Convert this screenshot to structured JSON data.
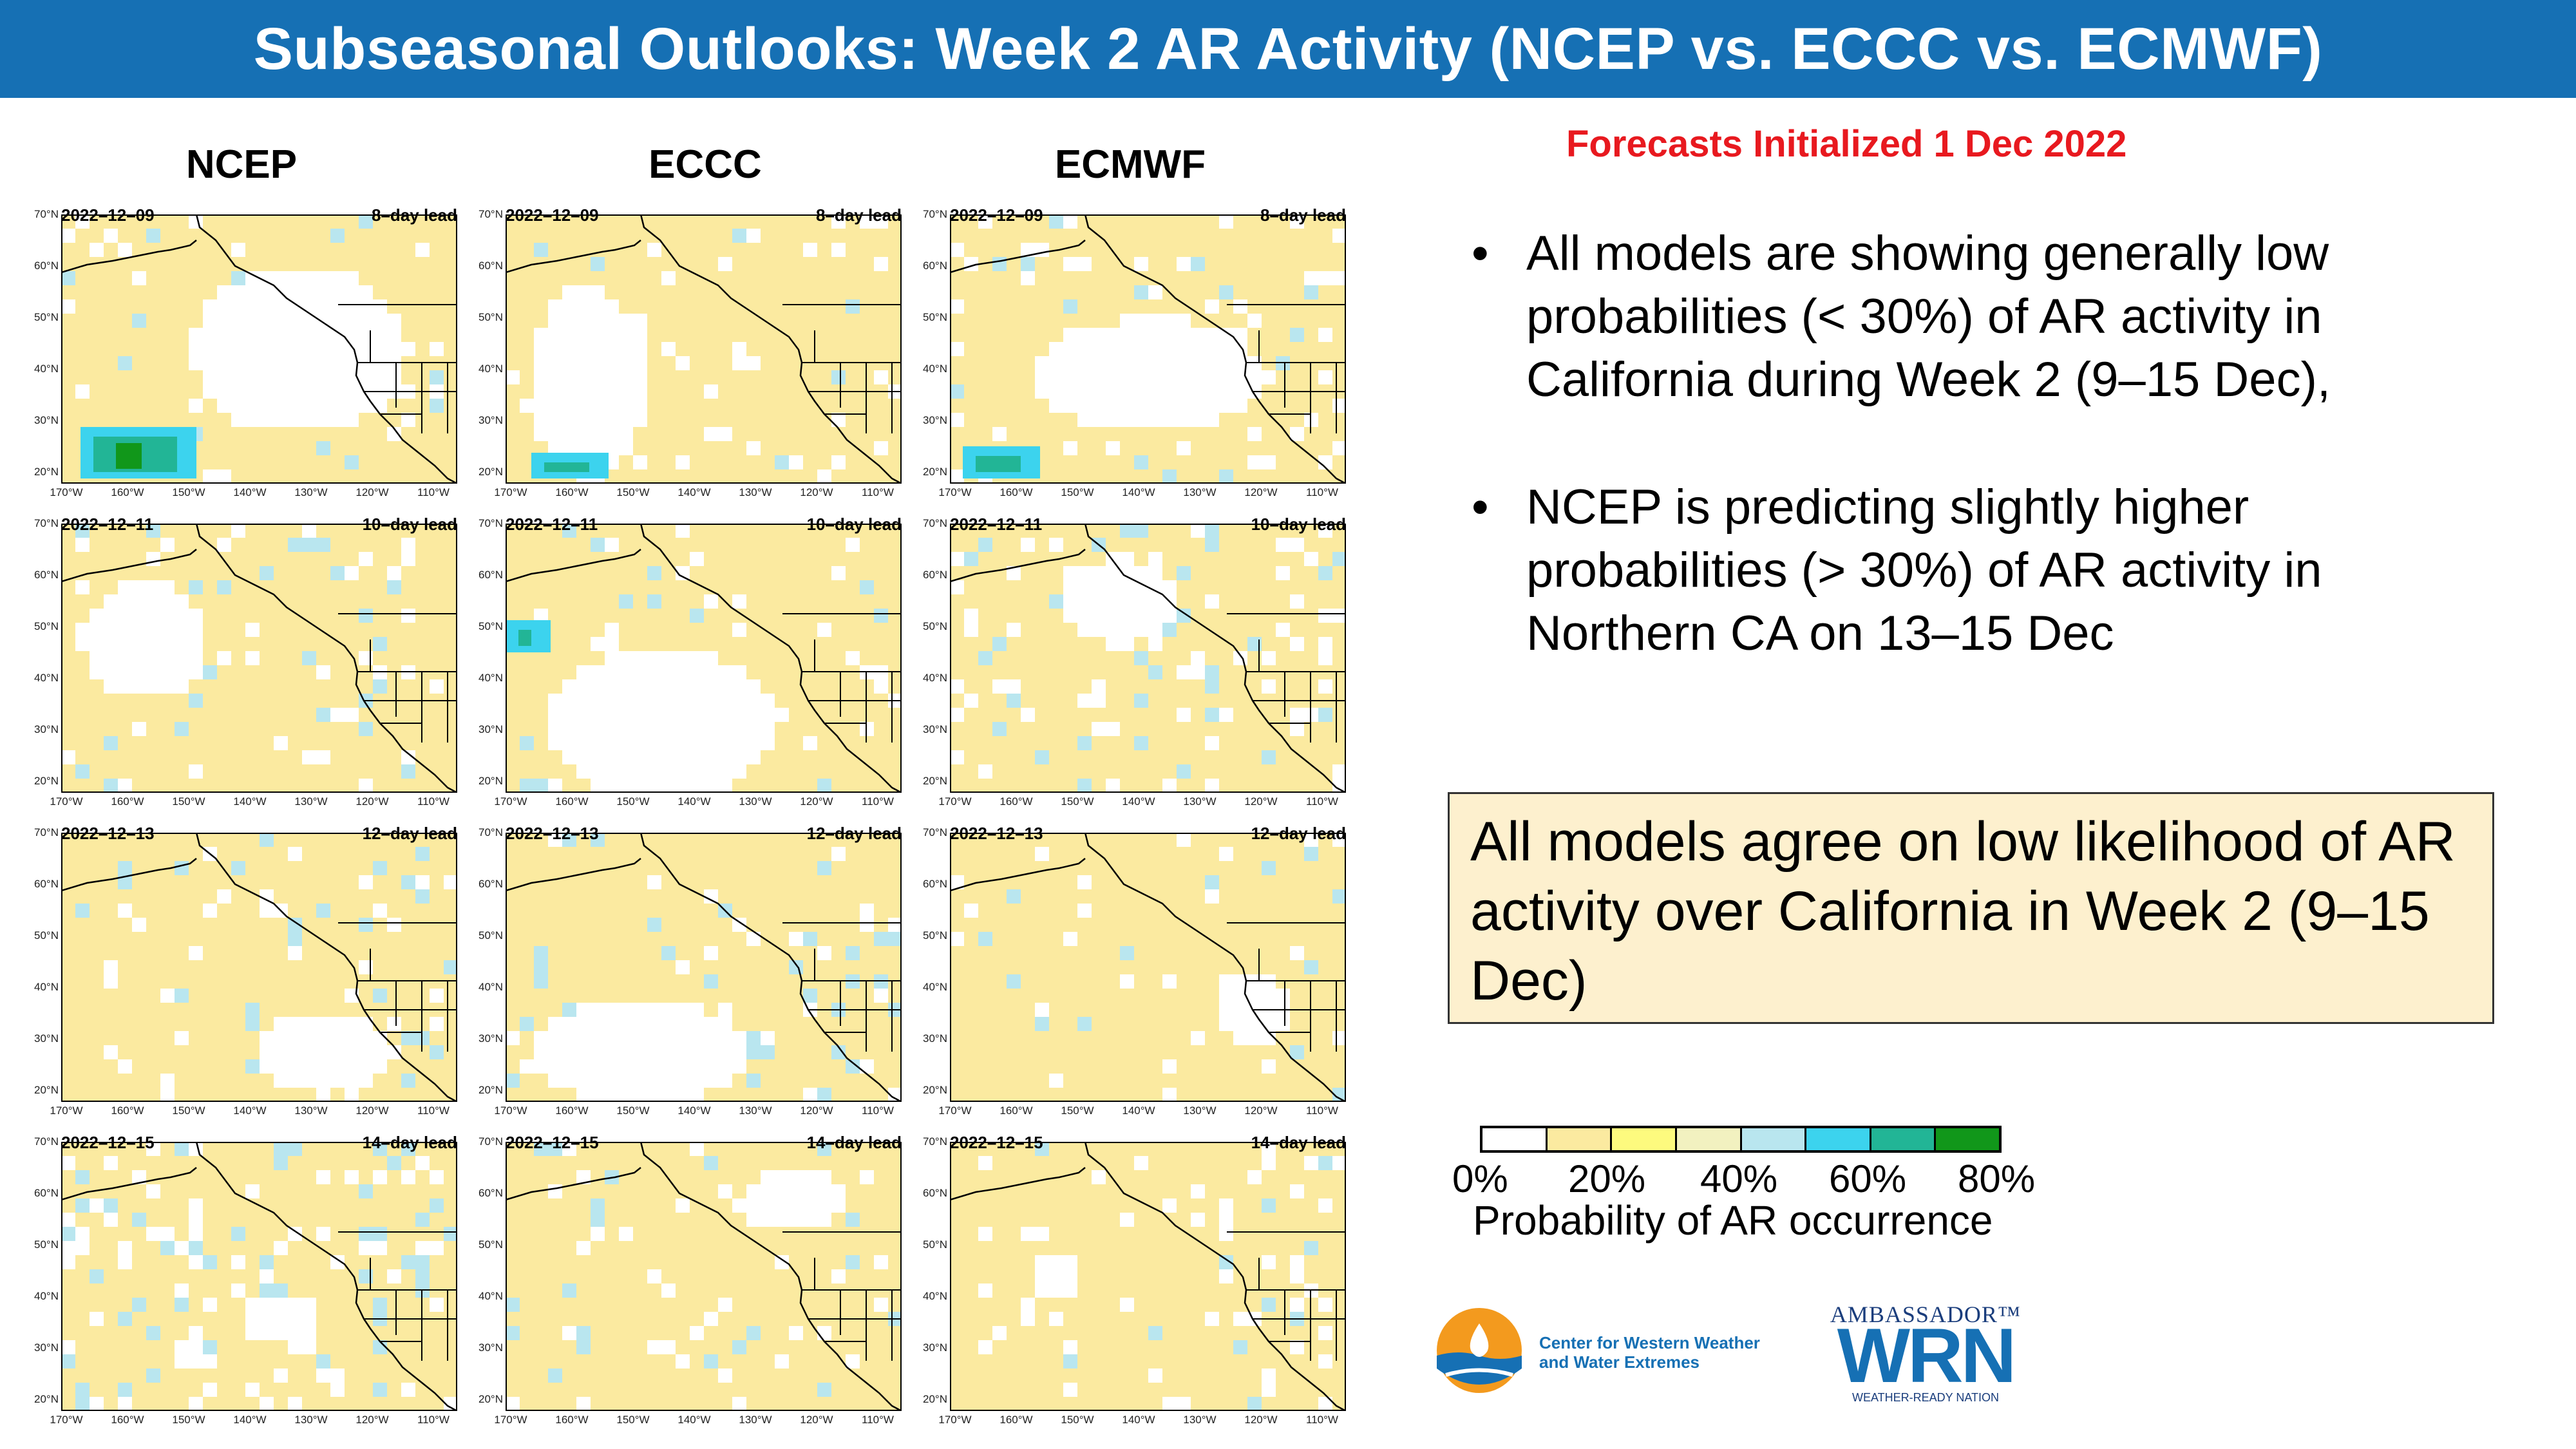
{
  "title": "Subseasonal Outlooks: Week 2 AR Activity (NCEP vs. ECCC vs. ECMWF)",
  "columns": [
    "NCEP",
    "ECCC",
    "ECMWF"
  ],
  "rows": [
    {
      "date": "2022–12–09",
      "lead": "8–day lead"
    },
    {
      "date": "2022–12–11",
      "lead": "10–day lead"
    },
    {
      "date": "2022–12–13",
      "lead": "12–day lead"
    },
    {
      "date": "2022–12–15",
      "lead": "14–day lead"
    }
  ],
  "lat_labels": [
    "70°N",
    "60°N",
    "50°N",
    "40°N",
    "30°N",
    "20°N"
  ],
  "lon_labels": [
    "170°W",
    "160°W",
    "150°W",
    "140°W",
    "130°W",
    "120°W",
    "110°W"
  ],
  "forecast_init": "Forecasts Initialized 1 Dec 2022",
  "bullets": [
    "All models are showing generally low probabilities (< 30%) of AR activity in California during Week 2 (9–15 Dec),",
    "NCEP is predicting slightly higher probabilities (> 30%) of AR activity in Northern CA on 13–15 Dec"
  ],
  "bullet_glyph": "•",
  "summary": "All models agree on low likelihood of AR activity over California in Week 2 (9–15 Dec)",
  "legend": {
    "colors": [
      "#ffffff",
      "#fbeaa0",
      "#fdfa7e",
      "#f2f1c0",
      "#b9e6ef",
      "#3cd3ee",
      "#22b596",
      "#11971a"
    ],
    "ticks": [
      "0%",
      "20%",
      "40%",
      "60%",
      "80%"
    ],
    "caption": "Probability of AR occurrence"
  },
  "logos": {
    "cw3e_line1": "Center for Western Weather",
    "cw3e_line2": "and Water Extremes",
    "wrn_top": "AMBASSADOR™",
    "wrn_big": "WRN",
    "wrn_bottom": "WEATHER-READY NATION"
  },
  "map_colors": {
    "land_low": "#fbeaa0",
    "light_blue": "#b9e6ef",
    "cyan": "#3cd3ee",
    "teal": "#22b596",
    "green": "#11971a",
    "white": "#ffffff"
  }
}
